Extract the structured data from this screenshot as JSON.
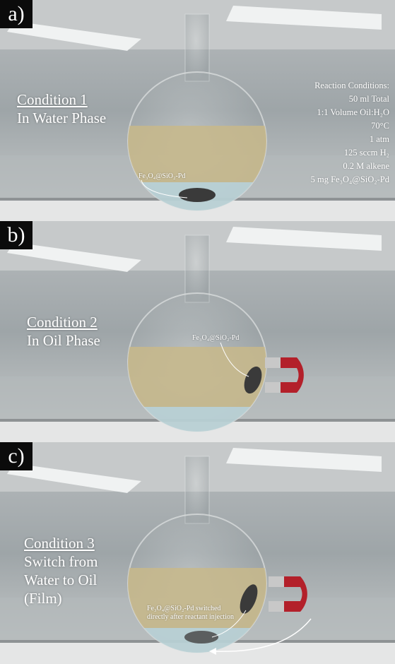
{
  "panels": {
    "a": {
      "label": "a)",
      "condition_title": "Condition 1",
      "condition_lines": [
        "In Water Phase"
      ],
      "catalyst_label": "Fe₃O₄@SiO₂-Pd"
    },
    "b": {
      "label": "b)",
      "condition_title": "Condition 2",
      "condition_lines": [
        "In Oil Phase"
      ],
      "catalyst_label": "Fe₃O₄@SiO₂-Pd"
    },
    "c": {
      "label": "c)",
      "condition_title": "Condition 3",
      "condition_lines": [
        "Switch from",
        "Water to Oil",
        "(Film)"
      ],
      "catalyst_label_line1": "Fe₃O₄@SiO₂-Pd switched",
      "catalyst_label_line2": "directly after reactant injection"
    }
  },
  "reaction_conditions": {
    "heading": "Reaction Conditions:",
    "lines": [
      "50 ml Total",
      "1:1 Volume Oil:H₂O",
      "70°C",
      "1 atm",
      "125 sccm H₂",
      "0.2 M alkene",
      "5 mg Fe₃O₄@SiO₂-Pd"
    ]
  },
  "colors": {
    "oil": "#c8b98a",
    "water": "#b9d2d6",
    "magnet_red": "#b3202a",
    "magnet_steel": "#c8c8c8",
    "catalyst": "#3a3a3a",
    "label_bg": "#0b0b0b"
  }
}
